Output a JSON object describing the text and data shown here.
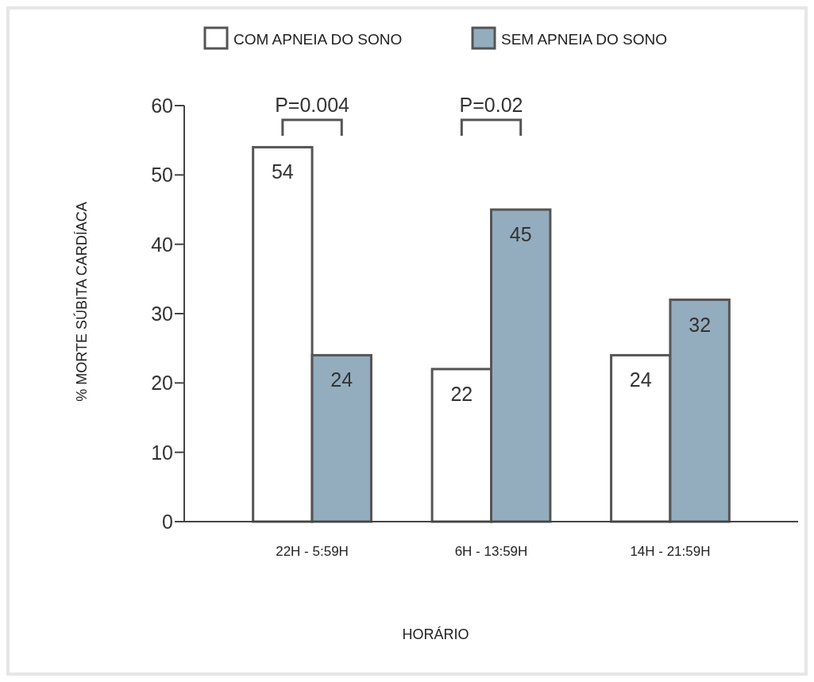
{
  "chart_data": {
    "type": "bar",
    "xlabel": "HORÁRIO",
    "ylabel": "% MORTE SÚBITA CARDÍACA",
    "categories": [
      "22H - 5:59H",
      "6H - 13:59H",
      "14H - 21:59H"
    ],
    "series": [
      {
        "name": "COM APNEIA DO SONO",
        "color": "#ffffff",
        "values": [
          54,
          22,
          24
        ]
      },
      {
        "name": "SEM APNEIA DO SONO",
        "color": "#93adbf",
        "values": [
          24,
          45,
          32
        ]
      }
    ],
    "ylim": [
      0,
      60
    ],
    "yticks": [
      0,
      10,
      20,
      30,
      40,
      50,
      60
    ],
    "legend": "top",
    "data_labels": true,
    "annotations": [
      "P=0.004",
      "P=0.02"
    ]
  }
}
